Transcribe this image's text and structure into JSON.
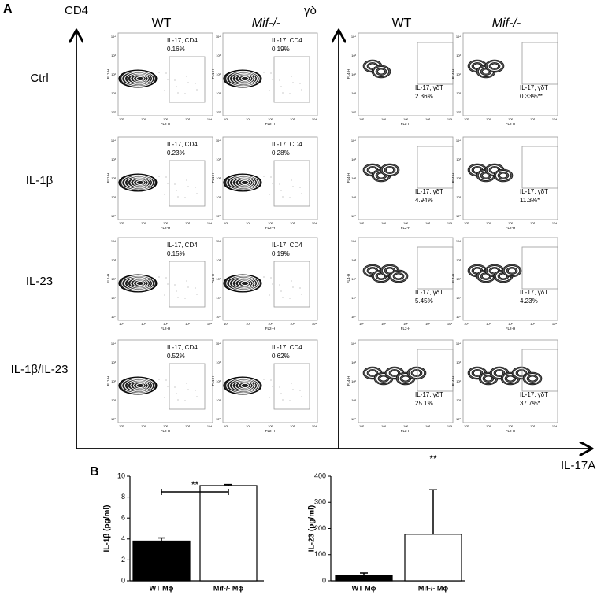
{
  "panel_a": {
    "letter": "A",
    "marker_left": "CD4",
    "marker_right": "γδ",
    "x_axis": "IL-17A",
    "columns": [
      "WT",
      "Mif-/-",
      "WT",
      "Mif-/-"
    ],
    "plot_axes": {
      "y_cd4": "FL1-H",
      "y_gd": "FL4-H",
      "x": "FL2-H",
      "decades": [
        "10⁰",
        "10¹",
        "10²",
        "10³",
        "10⁴"
      ]
    },
    "rows": [
      {
        "label": "Ctrl",
        "cells": [
          {
            "gate": "IL-17, CD4",
            "percent": "0.16%"
          },
          {
            "gate": "IL-17, CD4",
            "percent": "0.19%"
          },
          {
            "gate": "IL-17, γδT",
            "percent": "2.36%"
          },
          {
            "gate": "IL-17, γδT",
            "percent": "0.33%**"
          }
        ]
      },
      {
        "label": "IL-1β",
        "cells": [
          {
            "gate": "IL-17, CD4",
            "percent": "0.23%"
          },
          {
            "gate": "IL-17, CD4",
            "percent": "0.28%"
          },
          {
            "gate": "IL-17, γδT",
            "percent": "4.94%"
          },
          {
            "gate": "IL-17, γδT",
            "percent": "11.3%*"
          }
        ]
      },
      {
        "label": "IL-23",
        "cells": [
          {
            "gate": "IL-17, CD4",
            "percent": "0.15%"
          },
          {
            "gate": "IL-17, CD4",
            "percent": "0.19%"
          },
          {
            "gate": "IL-17, γδT",
            "percent": "5.45%"
          },
          {
            "gate": "IL-17, γδT",
            "percent": "4.23%"
          }
        ]
      },
      {
        "label": "IL-1β/IL-23",
        "cells": [
          {
            "gate": "IL-17, CD4",
            "percent": "0.52%"
          },
          {
            "gate": "IL-17, CD4",
            "percent": "0.62%"
          },
          {
            "gate": "IL-17, γδT",
            "percent": "25.1%"
          },
          {
            "gate": "IL-17, γδT",
            "percent": "37.7%*"
          }
        ]
      }
    ]
  },
  "panel_b": {
    "letter": "B"
  },
  "chart_data": [
    {
      "type": "bar",
      "y_label": "IL-1β (pg/ml)",
      "categories": [
        "WT Mϕ",
        "Mif-/- Mϕ"
      ],
      "values": [
        3.8,
        9.1
      ],
      "errors": [
        0.3,
        0.1
      ],
      "colors": [
        "#000000",
        "#ffffff"
      ],
      "ylim": [
        0,
        10
      ],
      "yticks": [
        0,
        2,
        4,
        6,
        8,
        10
      ],
      "annotation": "**"
    },
    {
      "type": "bar",
      "y_label": "IL-23 (pg/ml)",
      "categories": [
        "WT Mϕ",
        "Mif-/- Mϕ"
      ],
      "values": [
        22,
        178
      ],
      "errors": [
        8,
        170
      ],
      "colors": [
        "#000000",
        "#ffffff"
      ],
      "ylim": [
        0,
        400
      ],
      "yticks": [
        0,
        100,
        200,
        300,
        400
      ],
      "annotation": "**"
    }
  ]
}
